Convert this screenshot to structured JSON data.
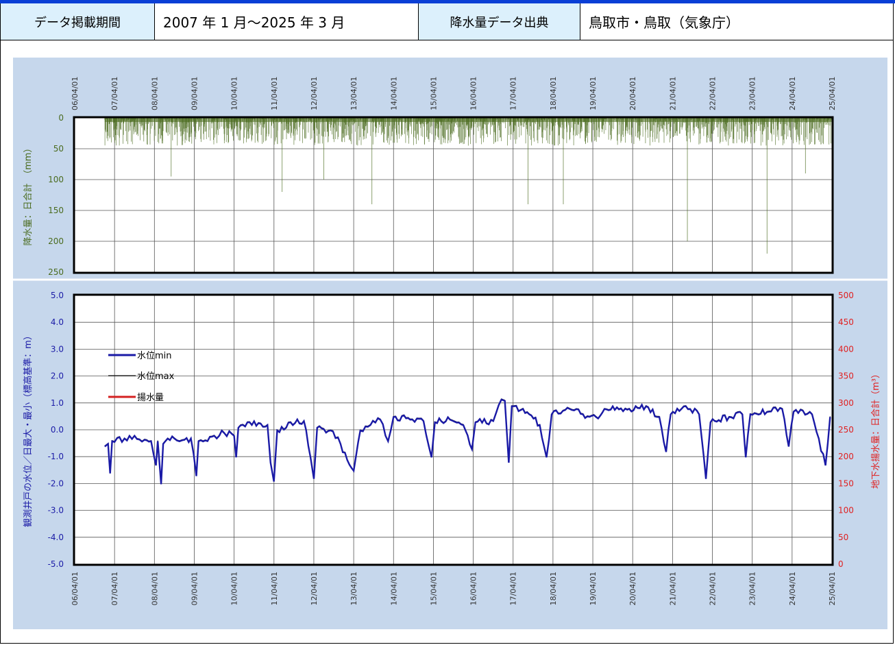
{
  "header": {
    "period_label": "データ掲載期間",
    "period_value": "2007 年 1 月～2025 年 3 月",
    "source_label": "降水量データ出典",
    "source_value": "鳥取市・鳥取（気象庁）"
  },
  "chart_data": [
    {
      "type": "bar",
      "ylabel": "降水量：日合計　（mm）",
      "ylim": [
        250,
        0
      ],
      "yticks": [
        "0",
        "50",
        "100",
        "150",
        "200",
        "250"
      ],
      "x_tick_labels": [
        "06/04/01",
        "07/04/01",
        "08/04/01",
        "09/04/01",
        "10/04/01",
        "11/04/01",
        "12/04/01",
        "13/04/01",
        "14/04/01",
        "15/04/01",
        "16/04/01",
        "17/04/01",
        "18/04/01",
        "19/04/01",
        "20/04/01",
        "21/04/01",
        "22/04/01",
        "23/04/01",
        "24/04/01",
        "25/04/01"
      ],
      "xlim": [
        "2006-04-01",
        "2025-04-01"
      ],
      "grid": true,
      "color": "#4a6b1e",
      "notable_peaks": [
        {
          "x": "2008-09-01",
          "value": 95
        },
        {
          "x": "2011-06-15",
          "value": 120
        },
        {
          "x": "2012-07-01",
          "value": 100
        },
        {
          "x": "2013-09-15",
          "value": 140
        },
        {
          "x": "2017-08-15",
          "value": 140
        },
        {
          "x": "2018-07-05",
          "value": 140
        },
        {
          "x": "2021-08-15",
          "value": 200
        },
        {
          "x": "2023-08-15",
          "value": 220
        },
        {
          "x": "2024-08-01",
          "value": 90
        }
      ]
    },
    {
      "type": "line",
      "ylabel": "観測井戸の水位／日最大・最小（標高基準：m）",
      "ylim": [
        -5.0,
        5.0
      ],
      "yticks": [
        "5.0",
        "4.0",
        "3.0",
        "2.0",
        "1.0",
        "0.0",
        "-1.0",
        "-2.0",
        "-3.0",
        "-4.0",
        "-5.0"
      ],
      "y2label": "地下水揚水量：日合計（m³）",
      "y2lim": [
        0,
        500
      ],
      "y2ticks": [
        "500",
        "450",
        "400",
        "350",
        "300",
        "250",
        "200",
        "150",
        "100",
        "50",
        "0"
      ],
      "x_tick_labels": [
        "06/04/01",
        "07/04/01",
        "08/04/01",
        "09/04/01",
        "10/04/01",
        "11/04/01",
        "12/04/01",
        "13/04/01",
        "14/04/01",
        "15/04/01",
        "16/04/01",
        "17/04/01",
        "18/04/01",
        "19/04/01",
        "20/04/01",
        "21/04/01",
        "22/04/01",
        "23/04/01",
        "24/04/01",
        "25/04/01"
      ],
      "xlim": [
        "2006-04-01",
        "2025-04-01"
      ],
      "grid": true,
      "legend": [
        {
          "name": "水位min",
          "color": "#1a1aa6"
        },
        {
          "name": "水位max",
          "color": "#000000"
        },
        {
          "name": "揚水量",
          "color": "#d42020"
        }
      ],
      "legend_position": "top-left",
      "series_points": [
        [
          "2007-01-01",
          -0.6
        ],
        [
          "2007-02-01",
          -0.5
        ],
        [
          "2007-02-20",
          -1.6
        ],
        [
          "2007-03-10",
          -0.4
        ],
        [
          "2007-07-01",
          -0.3
        ],
        [
          "2007-10-01",
          -0.2
        ],
        [
          "2008-01-01",
          -0.35
        ],
        [
          "2008-03-01",
          -0.4
        ],
        [
          "2008-04-15",
          -1.3
        ],
        [
          "2008-05-01",
          -0.4
        ],
        [
          "2008-06-01",
          -2.0
        ],
        [
          "2008-06-20",
          -0.5
        ],
        [
          "2008-10-01",
          -0.3
        ],
        [
          "2009-01-01",
          -0.35
        ],
        [
          "2009-03-01",
          -0.3
        ],
        [
          "2009-04-20",
          -1.7
        ],
        [
          "2009-05-10",
          -0.4
        ],
        [
          "2009-10-01",
          -0.2
        ],
        [
          "2010-01-01",
          -0.1
        ],
        [
          "2010-04-01",
          -0.2
        ],
        [
          "2010-04-20",
          -1.0
        ],
        [
          "2010-05-10",
          0.1
        ],
        [
          "2010-08-01",
          0.3
        ],
        [
          "2010-12-01",
          0.25
        ],
        [
          "2011-02-01",
          0.2
        ],
        [
          "2011-03-01",
          -1.2
        ],
        [
          "2011-04-01",
          -1.9
        ],
        [
          "2011-05-01",
          0.0
        ],
        [
          "2011-09-01",
          0.3
        ],
        [
          "2012-01-01",
          0.35
        ],
        [
          "2012-03-01",
          -1.0
        ],
        [
          "2012-04-01",
          -1.8
        ],
        [
          "2012-05-01",
          0.1
        ],
        [
          "2012-09-01",
          0.0
        ],
        [
          "2012-12-01",
          -0.5
        ],
        [
          "2013-02-01",
          -1.1
        ],
        [
          "2013-04-01",
          -1.5
        ],
        [
          "2013-06-01",
          0.0
        ],
        [
          "2013-09-01",
          0.2
        ],
        [
          "2013-12-01",
          0.4
        ],
        [
          "2014-02-10",
          -0.4
        ],
        [
          "2014-04-01",
          0.5
        ],
        [
          "2014-09-01",
          0.4
        ],
        [
          "2015-01-01",
          0.35
        ],
        [
          "2015-03-15",
          -1.0
        ],
        [
          "2015-04-15",
          0.3
        ],
        [
          "2015-09-01",
          0.4
        ],
        [
          "2016-01-01",
          0.2
        ],
        [
          "2016-03-20",
          -0.7
        ],
        [
          "2016-04-20",
          0.3
        ],
        [
          "2016-10-01",
          0.35
        ],
        [
          "2016-12-15",
          1.15
        ],
        [
          "2017-01-15",
          1.1
        ],
        [
          "2017-02-20",
          -1.2
        ],
        [
          "2017-03-20",
          0.9
        ],
        [
          "2017-07-01",
          0.8
        ],
        [
          "2017-12-01",
          0.2
        ],
        [
          "2018-02-01",
          -1.0
        ],
        [
          "2018-03-20",
          0.6
        ],
        [
          "2018-09-01",
          0.8
        ],
        [
          "2019-01-01",
          0.6
        ],
        [
          "2019-05-01",
          0.5
        ],
        [
          "2019-10-01",
          0.9
        ],
        [
          "2020-03-01",
          0.8
        ],
        [
          "2020-08-01",
          0.9
        ],
        [
          "2020-12-01",
          0.5
        ],
        [
          "2021-02-01",
          -0.8
        ],
        [
          "2021-03-15",
          0.6
        ],
        [
          "2021-08-01",
          0.9
        ],
        [
          "2021-12-01",
          0.6
        ],
        [
          "2022-02-01",
          -1.8
        ],
        [
          "2022-03-15",
          0.3
        ],
        [
          "2022-09-01",
          0.5
        ],
        [
          "2023-01-01",
          0.6
        ],
        [
          "2023-02-01",
          -1.0
        ],
        [
          "2023-03-15",
          0.6
        ],
        [
          "2023-09-01",
          0.7
        ],
        [
          "2024-01-01",
          0.8
        ],
        [
          "2024-03-01",
          -0.6
        ],
        [
          "2024-04-15",
          0.7
        ],
        [
          "2024-10-01",
          0.6
        ],
        [
          "2025-02-01",
          -1.3
        ],
        [
          "2025-03-15",
          0.5
        ]
      ]
    }
  ]
}
